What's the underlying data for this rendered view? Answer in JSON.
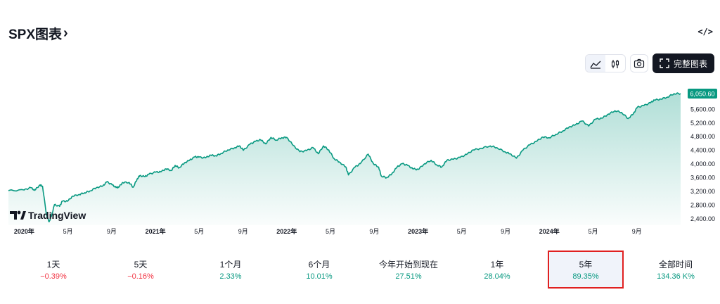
{
  "header": {
    "title": "SPX图表",
    "chevron": "›",
    "embed_label": "</>"
  },
  "toolbar": {
    "area_icon": "area-chart-icon",
    "candle_icon": "candlestick-icon",
    "camera_icon": "camera-icon",
    "fullscreen_icon": "fullscreen-icon",
    "fullscreen_label": "完整图表"
  },
  "brand": {
    "name": "TradingView",
    "logo": "TV"
  },
  "colors": {
    "line": "#089981",
    "area_top": "#089981",
    "up": "#089981",
    "down": "#f23645",
    "accent_box": "#e02020"
  },
  "chart_data": {
    "type": "area",
    "symbol": "SPX",
    "last_value_label": "6,050.60",
    "ylim": [
      2200,
      6400
    ],
    "y_ticks": [
      "5,600.00",
      "5,200.00",
      "4,800.00",
      "4,400.00",
      "4,000.00",
      "3,600.00",
      "3,200.00",
      "2,800.00",
      "2,400.00"
    ],
    "y_tick_values": [
      5600,
      5200,
      4800,
      4400,
      4000,
      3600,
      3200,
      2800,
      2400
    ],
    "x_ticks": [
      {
        "label": "2020年",
        "t": 0.0,
        "bold": true
      },
      {
        "label": "5月",
        "t": 0.333,
        "bold": false
      },
      {
        "label": "9月",
        "t": 0.667,
        "bold": false
      },
      {
        "label": "2021年",
        "t": 1.0,
        "bold": true
      },
      {
        "label": "5月",
        "t": 1.333,
        "bold": false
      },
      {
        "label": "9月",
        "t": 1.667,
        "bold": false
      },
      {
        "label": "2022年",
        "t": 2.0,
        "bold": true
      },
      {
        "label": "5月",
        "t": 2.333,
        "bold": false
      },
      {
        "label": "9月",
        "t": 2.667,
        "bold": false
      },
      {
        "label": "2023年",
        "t": 3.0,
        "bold": true
      },
      {
        "label": "5月",
        "t": 3.333,
        "bold": false
      },
      {
        "label": "9月",
        "t": 3.667,
        "bold": false
      },
      {
        "label": "2024年",
        "t": 4.0,
        "bold": true
      },
      {
        "label": "5月",
        "t": 4.333,
        "bold": false
      },
      {
        "label": "9月",
        "t": 4.667,
        "bold": false
      }
    ],
    "x_range": [
      -0.12,
      5.0
    ],
    "points": [
      [
        -0.12,
        3210
      ],
      [
        0.0,
        3230
      ],
      [
        0.05,
        3300
      ],
      [
        0.08,
        3220
      ],
      [
        0.12,
        3380
      ],
      [
        0.14,
        3340
      ],
      [
        0.17,
        2500
      ],
      [
        0.19,
        2300
      ],
      [
        0.21,
        2500
      ],
      [
        0.23,
        2800
      ],
      [
        0.27,
        2750
      ],
      [
        0.29,
        2900
      ],
      [
        0.33,
        2900
      ],
      [
        0.37,
        3050
      ],
      [
        0.42,
        3100
      ],
      [
        0.46,
        3150
      ],
      [
        0.5,
        3200
      ],
      [
        0.55,
        3300
      ],
      [
        0.6,
        3350
      ],
      [
        0.63,
        3470
      ],
      [
        0.67,
        3380
      ],
      [
        0.7,
        3300
      ],
      [
        0.72,
        3310
      ],
      [
        0.75,
        3450
      ],
      [
        0.8,
        3450
      ],
      [
        0.83,
        3310
      ],
      [
        0.86,
        3550
      ],
      [
        0.88,
        3650
      ],
      [
        0.92,
        3620
      ],
      [
        0.95,
        3690
      ],
      [
        1.0,
        3750
      ],
      [
        1.04,
        3760
      ],
      [
        1.08,
        3850
      ],
      [
        1.12,
        3800
      ],
      [
        1.15,
        3950
      ],
      [
        1.18,
        3880
      ],
      [
        1.22,
        4020
      ],
      [
        1.26,
        4100
      ],
      [
        1.3,
        4200
      ],
      [
        1.33,
        4190
      ],
      [
        1.38,
        4170
      ],
      [
        1.42,
        4250
      ],
      [
        1.46,
        4230
      ],
      [
        1.5,
        4300
      ],
      [
        1.55,
        4400
      ],
      [
        1.6,
        4460
      ],
      [
        1.64,
        4520
      ],
      [
        1.67,
        4390
      ],
      [
        1.72,
        4570
      ],
      [
        1.76,
        4650
      ],
      [
        1.8,
        4700
      ],
      [
        1.84,
        4580
      ],
      [
        1.88,
        4770
      ],
      [
        1.92,
        4690
      ],
      [
        1.96,
        4760
      ],
      [
        2.0,
        4770
      ],
      [
        2.05,
        4530
      ],
      [
        2.1,
        4350
      ],
      [
        2.15,
        4380
      ],
      [
        2.2,
        4470
      ],
      [
        2.24,
        4290
      ],
      [
        2.28,
        4520
      ],
      [
        2.32,
        4400
      ],
      [
        2.36,
        4150
      ],
      [
        2.4,
        4050
      ],
      [
        2.45,
        3900
      ],
      [
        2.47,
        3670
      ],
      [
        2.52,
        3900
      ],
      [
        2.56,
        4000
      ],
      [
        2.62,
        4280
      ],
      [
        2.66,
        4000
      ],
      [
        2.7,
        3900
      ],
      [
        2.72,
        3640
      ],
      [
        2.76,
        3590
      ],
      [
        2.8,
        3700
      ],
      [
        2.84,
        3900
      ],
      [
        2.88,
        4000
      ],
      [
        2.92,
        3950
      ],
      [
        2.96,
        3850
      ],
      [
        3.0,
        3830
      ],
      [
        3.05,
        4000
      ],
      [
        3.1,
        4100
      ],
      [
        3.14,
        3970
      ],
      [
        3.18,
        3900
      ],
      [
        3.22,
        4100
      ],
      [
        3.27,
        4130
      ],
      [
        3.32,
        4180
      ],
      [
        3.37,
        4270
      ],
      [
        3.42,
        4400
      ],
      [
        3.48,
        4450
      ],
      [
        3.55,
        4520
      ],
      [
        3.6,
        4470
      ],
      [
        3.66,
        4350
      ],
      [
        3.7,
        4290
      ],
      [
        3.75,
        4160
      ],
      [
        3.8,
        4400
      ],
      [
        3.85,
        4550
      ],
      [
        3.9,
        4650
      ],
      [
        3.95,
        4780
      ],
      [
        4.0,
        4760
      ],
      [
        4.05,
        4860
      ],
      [
        4.1,
        4950
      ],
      [
        4.15,
        5070
      ],
      [
        4.2,
        5140
      ],
      [
        4.25,
        5250
      ],
      [
        4.3,
        5100
      ],
      [
        4.35,
        5300
      ],
      [
        4.4,
        5330
      ],
      [
        4.45,
        5450
      ],
      [
        4.5,
        5550
      ],
      [
        4.55,
        5500
      ],
      [
        4.6,
        5320
      ],
      [
        4.64,
        5460
      ],
      [
        4.67,
        5650
      ],
      [
        4.72,
        5700
      ],
      [
        4.77,
        5780
      ],
      [
        4.8,
        5860
      ],
      [
        4.85,
        5890
      ],
      [
        4.9,
        5950
      ],
      [
        4.95,
        6050
      ],
      [
        5.0,
        6050.6
      ]
    ]
  },
  "ranges": [
    {
      "label": "1天",
      "value": "−0.39%",
      "sign": "neg"
    },
    {
      "label": "5天",
      "value": "−0.16%",
      "sign": "neg"
    },
    {
      "label": "1个月",
      "value": "2.33%",
      "sign": "pos"
    },
    {
      "label": "6个月",
      "value": "10.01%",
      "sign": "pos"
    },
    {
      "label": "今年开始到现在",
      "value": "27.51%",
      "sign": "pos"
    },
    {
      "label": "1年",
      "value": "28.04%",
      "sign": "pos"
    },
    {
      "label": "5年",
      "value": "89.35%",
      "sign": "pos",
      "selected": true
    },
    {
      "label": "全部时间",
      "value": "134.36 K%",
      "sign": "pos"
    }
  ]
}
